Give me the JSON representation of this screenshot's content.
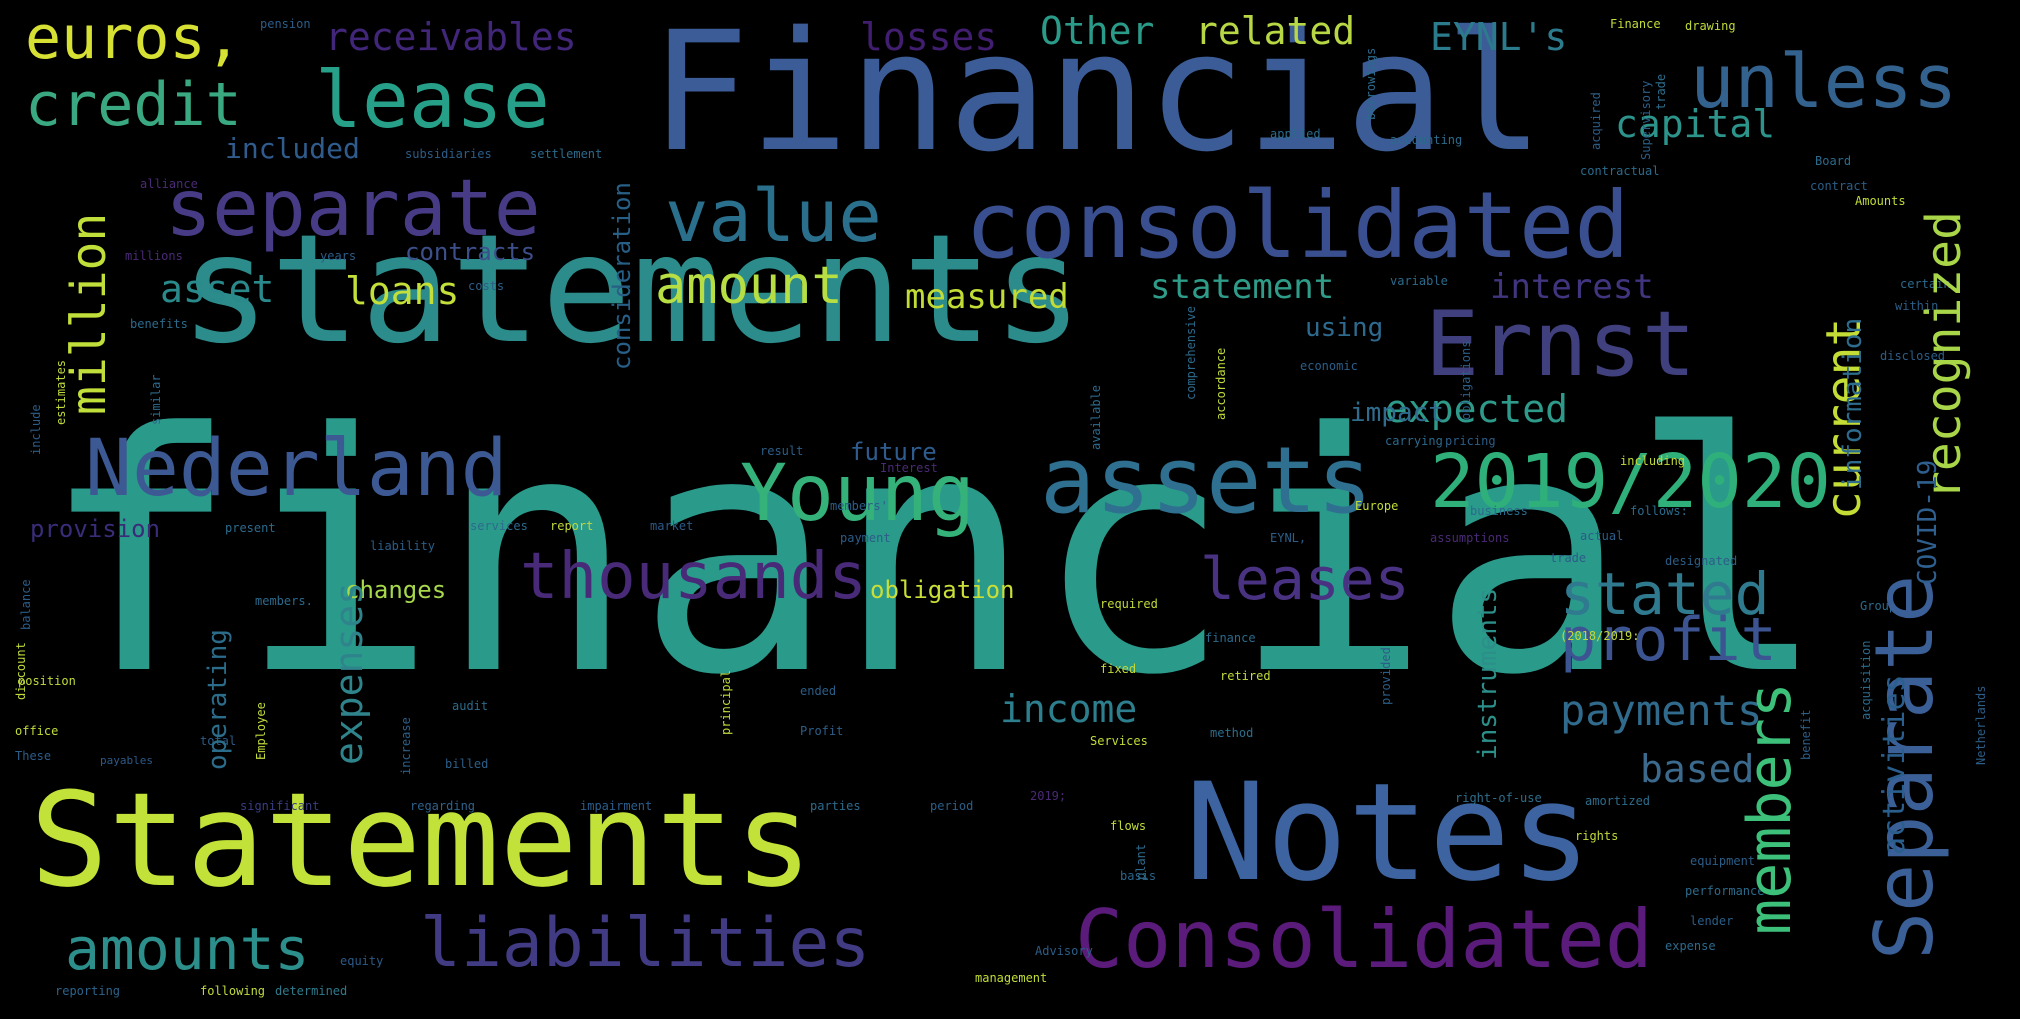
{
  "words": [
    {
      "text": "financial",
      "color": "#2a9a8b"
    },
    {
      "text": "statements",
      "color": "#2c8c8c"
    },
    {
      "text": "Financial",
      "color": "#3b5c96"
    },
    {
      "text": "Statements",
      "color": "#c2e23a"
    },
    {
      "text": "Notes",
      "color": "#3d64a0"
    },
    {
      "text": "consolidated",
      "color": "#3a4f8f"
    },
    {
      "text": "Consolidated",
      "color": "#5a1b7a"
    },
    {
      "text": "assets",
      "color": "#2f6f90"
    },
    {
      "text": "Young",
      "color": "#35b27a"
    },
    {
      "text": "2019/2020",
      "color": "#2fb07a"
    },
    {
      "text": "Nederland",
      "color": "#3d5994"
    },
    {
      "text": "Ernst",
      "color": "#41407f"
    },
    {
      "text": "separate",
      "color": "#473b86"
    },
    {
      "text": "Separate",
      "color": "#3b5f97"
    },
    {
      "text": "lease",
      "color": "#27a089"
    },
    {
      "text": "value",
      "color": "#2a6f8c"
    },
    {
      "text": "liabilities",
      "color": "#413b83"
    },
    {
      "text": "thousands",
      "color": "#482a79"
    },
    {
      "text": "members",
      "color": "#3cc07a"
    },
    {
      "text": "unless",
      "color": "#33628f"
    },
    {
      "text": "credit",
      "color": "#3aa880"
    },
    {
      "text": "euros,",
      "color": "#d6e134"
    },
    {
      "text": "million",
      "color": "#c1df3a"
    },
    {
      "text": "amount",
      "color": "#b7de42"
    },
    {
      "text": "amounts",
      "color": "#2d8f8b"
    },
    {
      "text": "profit",
      "color": "#3c5592"
    },
    {
      "text": "stated",
      "color": "#2f7a8e"
    },
    {
      "text": "leases",
      "color": "#4a3283"
    },
    {
      "text": "current",
      "color": "#c4dc36"
    },
    {
      "text": "recognized",
      "color": "#a9d649"
    },
    {
      "text": "payments",
      "color": "#306a8c"
    },
    {
      "text": "expected",
      "color": "#2d9a8a"
    },
    {
      "text": "income",
      "color": "#2d7f8e"
    },
    {
      "text": "expenses",
      "color": "#2f848c"
    },
    {
      "text": "based",
      "color": "#3b6a8d"
    },
    {
      "text": "receivables",
      "color": "#41267a"
    },
    {
      "text": "losses",
      "color": "#421e70"
    },
    {
      "text": "Other",
      "color": "#2a9a89"
    },
    {
      "text": "related",
      "color": "#b7d744"
    },
    {
      "text": "EYNL's",
      "color": "#2c7b8d"
    },
    {
      "text": "capital",
      "color": "#2d948c"
    },
    {
      "text": "asset",
      "color": "#2a8a8b"
    },
    {
      "text": "loans",
      "color": "#c3df3a"
    },
    {
      "text": "measured",
      "color": "#c2dc36"
    },
    {
      "text": "statement",
      "color": "#2f9c89"
    },
    {
      "text": "interest",
      "color": "#423580"
    },
    {
      "text": "included",
      "color": "#2f5c8d"
    },
    {
      "text": "contracts",
      "color": "#3d4f8a"
    },
    {
      "text": "impact",
      "color": "#2f6c8d"
    },
    {
      "text": "using",
      "color": "#2e6a8e"
    },
    {
      "text": "future",
      "color": "#2e5c8e"
    },
    {
      "text": "provision",
      "color": "#3a2c78"
    },
    {
      "text": "changes",
      "color": "#a7d84b"
    },
    {
      "text": "obligation",
      "color": "#c9de37"
    },
    {
      "text": "activities",
      "color": "#2a5f8d"
    },
    {
      "text": "information",
      "color": "#2d6c8d"
    },
    {
      "text": "instruments",
      "color": "#2d8f8a"
    },
    {
      "text": "COVID-19",
      "color": "#2e5f8e"
    },
    {
      "text": "operating",
      "color": "#2b6c8b"
    },
    {
      "text": "consideration",
      "color": "#275f86"
    },
    {
      "text": "trade",
      "color": "#2d6e8d"
    },
    {
      "text": "payables",
      "color": "#2c5a8a"
    },
    {
      "text": "significant",
      "color": "#3a3d80"
    },
    {
      "text": "regarding",
      "color": "#2f628b"
    },
    {
      "text": "impairment",
      "color": "#2c5d8a"
    },
    {
      "text": "parties",
      "color": "#2d6a8c"
    },
    {
      "text": "period",
      "color": "#2c5e88"
    },
    {
      "text": "2019;",
      "color": "#4a2a76"
    },
    {
      "text": "right-of-use",
      "color": "#2f6e8d"
    },
    {
      "text": "amortized",
      "color": "#2d6c8b"
    },
    {
      "text": "reporting",
      "color": "#2b638b"
    },
    {
      "text": "following",
      "color": "#c0da3e"
    },
    {
      "text": "determined",
      "color": "#2f7a8c"
    },
    {
      "text": "management",
      "color": "#c2dc36"
    },
    {
      "text": "Advisory",
      "color": "#2c5d88"
    },
    {
      "text": "equity",
      "color": "#2c5a87"
    },
    {
      "text": "performance",
      "color": "#2c6a8b"
    },
    {
      "text": "equipment",
      "color": "#2b5d87"
    },
    {
      "text": "rights",
      "color": "#c0db3a"
    },
    {
      "text": "flows",
      "color": "#c3dc3b"
    },
    {
      "text": "basis",
      "color": "#2c648a"
    },
    {
      "text": "provided",
      "color": "#2c5c87"
    },
    {
      "text": "plant",
      "color": "#2d6a8b"
    },
    {
      "text": "fixed",
      "color": "#c1d93a"
    },
    {
      "text": "retired",
      "color": "#c0db3c"
    },
    {
      "text": "Services",
      "color": "#c2dc38"
    },
    {
      "text": "method",
      "color": "#2d6d8b"
    },
    {
      "text": "finance",
      "color": "#2c6a8c"
    },
    {
      "text": "billed",
      "color": "#2d5e88"
    },
    {
      "text": "total",
      "color": "#2c5c88"
    },
    {
      "text": "audit",
      "color": "#2d6a8b"
    },
    {
      "text": "Profit",
      "color": "#2c5e88"
    },
    {
      "text": "ended",
      "color": "#2c5d87"
    },
    {
      "text": "principal",
      "color": "#c1d93a"
    },
    {
      "text": "increase",
      "color": "#2c5e88"
    },
    {
      "text": "Employee",
      "color": "#c2da39"
    },
    {
      "text": "discount",
      "color": "#c1d939"
    },
    {
      "text": "office",
      "color": "#c3dc3a"
    },
    {
      "text": "These",
      "color": "#2c5c88"
    },
    {
      "text": "position",
      "color": "#c1da3a"
    },
    {
      "text": "balance",
      "color": "#2c5c86"
    },
    {
      "text": "members.",
      "color": "#2c6a8c"
    },
    {
      "text": "liability",
      "color": "#2b5d87"
    },
    {
      "text": "services",
      "color": "#2d6a8c"
    },
    {
      "text": "report",
      "color": "#c0d83a"
    },
    {
      "text": "market",
      "color": "#2b5a86"
    },
    {
      "text": "payment",
      "color": "#2c5c88"
    },
    {
      "text": "present",
      "color": "#2c6a8c"
    },
    {
      "text": "result",
      "color": "#2c5d87"
    },
    {
      "text": "members'",
      "color": "#2c5e88"
    },
    {
      "text": "Interest",
      "color": "#4a2a76"
    },
    {
      "text": "comprehensive",
      "color": "#2c6a8c"
    },
    {
      "text": "EYNL,",
      "color": "#2c5e88"
    },
    {
      "text": "Europe",
      "color": "#c2dc38"
    },
    {
      "text": "carrying",
      "color": "#2c6a8c"
    },
    {
      "text": "pricing",
      "color": "#2c5d87"
    },
    {
      "text": "including",
      "color": "#c1d93a"
    },
    {
      "text": "business",
      "color": "#2c6a8c"
    },
    {
      "text": "assumptions",
      "color": "#4a2a76"
    },
    {
      "text": "actual",
      "color": "#2c5c88"
    },
    {
      "text": "follows:",
      "color": "#2c6a8c"
    },
    {
      "text": "trade",
      "color": "#2c5d87"
    },
    {
      "text": "Group",
      "color": "#2c6a8c"
    },
    {
      "text": "designated",
      "color": "#2c5d87"
    },
    {
      "text": "required",
      "color": "#c1d93a"
    },
    {
      "text": "Finance",
      "color": "#c2dc38"
    },
    {
      "text": "applied",
      "color": "#2c6a8c"
    },
    {
      "text": "acquired",
      "color": "#2c5e88"
    },
    {
      "text": "contractual",
      "color": "#2c6a8c"
    },
    {
      "text": "Supervisory",
      "color": "#2c5d87"
    },
    {
      "text": "borrowings",
      "color": "#2c6a8c"
    },
    {
      "text": "accounting",
      "color": "#2c6a8c"
    },
    {
      "text": "alliance",
      "color": "#4a2a76"
    },
    {
      "text": "subsidiaries",
      "color": "#2c5d87"
    },
    {
      "text": "settlement",
      "color": "#2c6a8c"
    },
    {
      "text": "millions",
      "color": "#4a2a76"
    },
    {
      "text": "years",
      "color": "#2c5c88"
    },
    {
      "text": "costs",
      "color": "#2c5d87"
    },
    {
      "text": "benefits",
      "color": "#2c6a8c"
    },
    {
      "text": "pension",
      "color": "#2c5d87"
    },
    {
      "text": "drawing",
      "color": "#c1d93a"
    },
    {
      "text": "Board",
      "color": "#2c6a8c"
    },
    {
      "text": "contract",
      "color": "#2c5d87"
    },
    {
      "text": "Amounts",
      "color": "#c2dc38"
    },
    {
      "text": "certain",
      "color": "#2c6a8c"
    },
    {
      "text": "within",
      "color": "#2c5d87"
    },
    {
      "text": "variable",
      "color": "#2c6a8c"
    },
    {
      "text": "economic",
      "color": "#2c5e88"
    },
    {
      "text": "disclosed",
      "color": "#2c5d87"
    },
    {
      "text": "accordance",
      "color": "#c1d93a"
    },
    {
      "text": "obligations",
      "color": "#2c5d87"
    },
    {
      "text": "available",
      "color": "#2c6a8c"
    },
    {
      "text": "include",
      "color": "#2c5d87"
    },
    {
      "text": "estimates",
      "color": "#c1d93a"
    },
    {
      "text": "similar",
      "color": "#2c6a8c"
    },
    {
      "text": "benefit",
      "color": "#2c5d87"
    },
    {
      "text": "acquisition",
      "color": "#2c6a8c"
    },
    {
      "text": "Netherlands",
      "color": "#2c5d87"
    },
    {
      "text": "expense",
      "color": "#2c6a8c"
    },
    {
      "text": "lender",
      "color": "#2c5e88"
    },
    {
      "text": "(2018/2019:",
      "color": "#c1d93a"
    }
  ]
}
